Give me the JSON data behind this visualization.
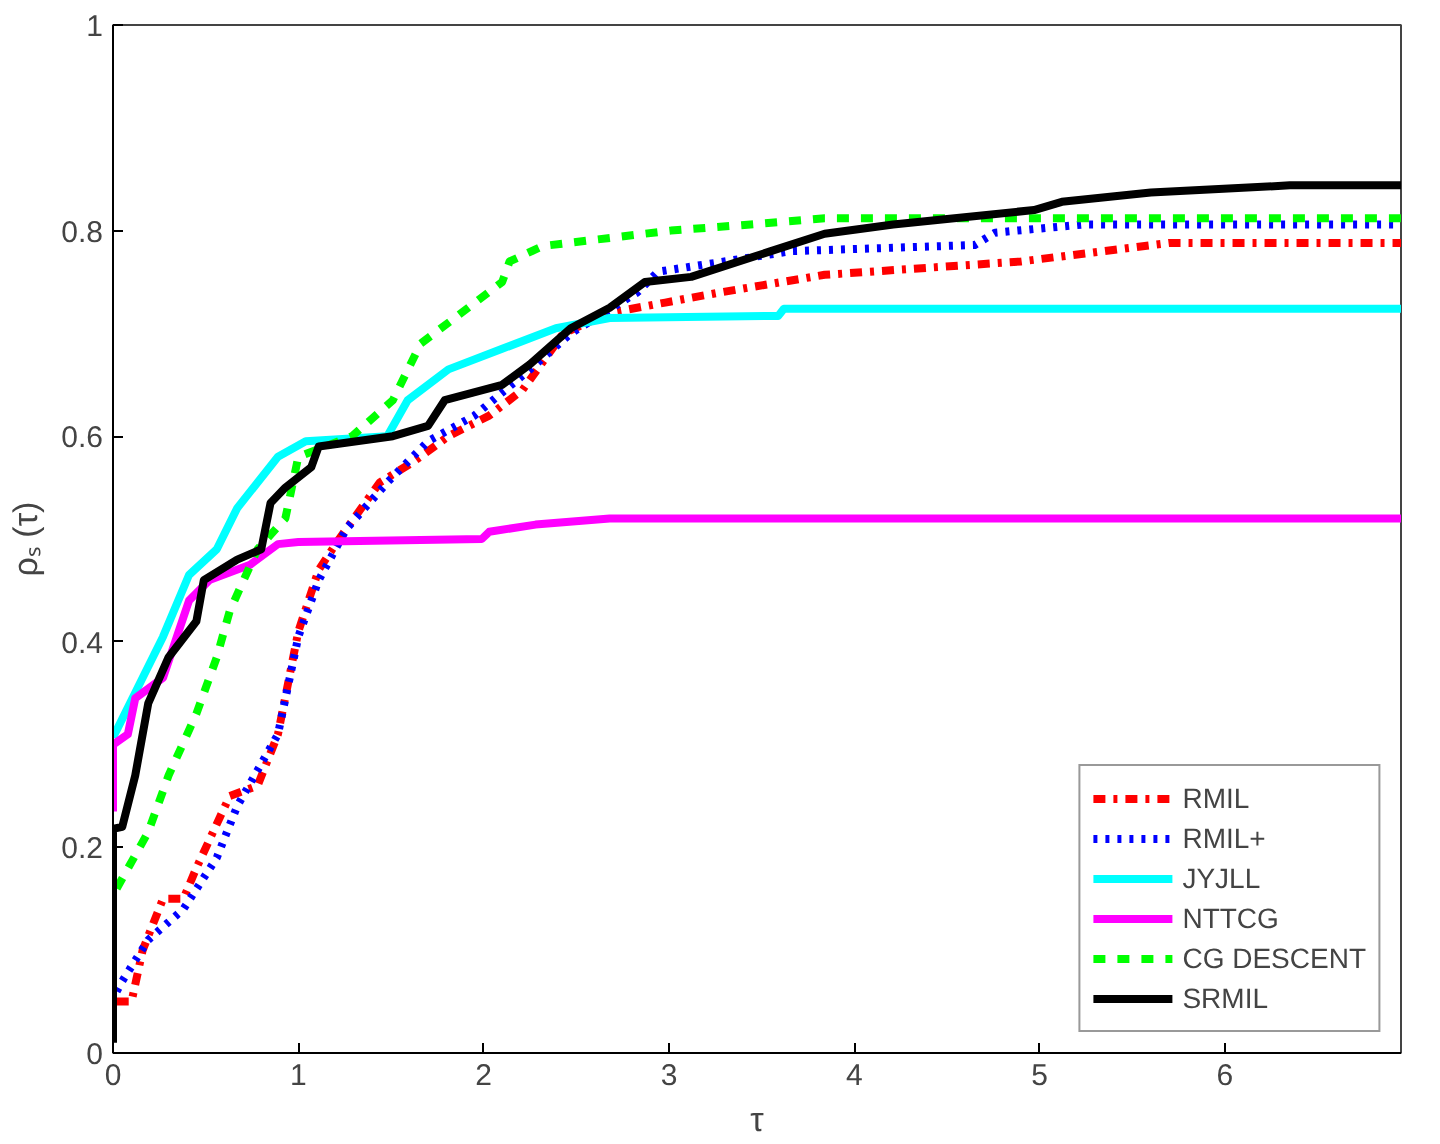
{
  "chart_data": {
    "type": "line",
    "xlabel": "τ",
    "ylabel": "ρₛ (τ)",
    "xlim": [
      0,
      6.95
    ],
    "xticks": [
      0,
      1,
      2,
      3,
      4,
      5,
      6
    ],
    "ylim": [
      0,
      1
    ],
    "yticks": [
      0,
      0.2,
      0.4,
      0.6,
      0.8,
      1
    ],
    "grid": false,
    "legend": "bottom right",
    "series": [
      {
        "name": "RMIL",
        "color": "#ff0000",
        "line_style": "dashdot",
        "x": [
          0.02,
          0.1,
          0.16,
          0.27,
          0.38,
          0.45,
          0.63,
          0.78,
          0.89,
          1.0,
          1.11,
          1.22,
          1.44,
          1.62,
          1.81,
          2.03,
          2.21,
          2.43,
          2.68,
          2.98,
          3.28,
          3.84,
          4.9,
          5.7,
          6.95
        ],
        "values": [
          0.05,
          0.05,
          0.1,
          0.15,
          0.15,
          0.18,
          0.25,
          0.26,
          0.31,
          0.41,
          0.47,
          0.5,
          0.555,
          0.575,
          0.6,
          0.62,
          0.645,
          0.7,
          0.72,
          0.73,
          0.74,
          0.757,
          0.77,
          0.788,
          0.788
        ]
      },
      {
        "name": "RMIL+",
        "color": "#0000ff",
        "line_style": "dotted",
        "x": [
          0.02,
          0.05,
          0.19,
          0.38,
          0.56,
          0.67,
          0.89,
          1.0,
          1.11,
          1.26,
          1.48,
          1.7,
          1.95,
          2.25,
          2.47,
          2.83,
          2.94,
          3.66,
          4.65,
          4.76,
          5.24,
          6.95
        ],
        "values": [
          0.06,
          0.07,
          0.11,
          0.14,
          0.19,
          0.24,
          0.31,
          0.405,
          0.46,
          0.51,
          0.555,
          0.595,
          0.62,
          0.665,
          0.7,
          0.74,
          0.76,
          0.78,
          0.786,
          0.798,
          0.806,
          0.806
        ]
      },
      {
        "name": "JYJLL",
        "color": "#00ffff",
        "line_style": "solid",
        "x": [
          0,
          0.05,
          0.16,
          0.27,
          0.41,
          0.56,
          0.67,
          0.78,
          0.89,
          1.04,
          1.48,
          1.59,
          1.81,
          2.1,
          2.39,
          2.68,
          3.59,
          3.62,
          6.95
        ],
        "values": [
          0.307,
          0.325,
          0.365,
          0.405,
          0.465,
          0.49,
          0.53,
          0.555,
          0.58,
          0.595,
          0.6,
          0.635,
          0.665,
          0.685,
          0.705,
          0.715,
          0.717,
          0.724,
          0.724
        ]
      },
      {
        "name": "NTTCG",
        "color": "#ff00ff",
        "line_style": "solid",
        "x": [
          0,
          0,
          0.08,
          0.12,
          0.27,
          0.41,
          0.52,
          0.74,
          0.89,
          1.0,
          1.99,
          2.03,
          2.28,
          2.68,
          6.95
        ],
        "values": [
          0.235,
          0.3,
          0.31,
          0.345,
          0.365,
          0.44,
          0.46,
          0.475,
          0.495,
          0.497,
          0.5,
          0.507,
          0.514,
          0.52,
          0.52
        ]
      },
      {
        "name": "CG DESCENT",
        "color": "#00ff00",
        "line_style": "dashed",
        "x": [
          0.02,
          0.19,
          0.3,
          0.45,
          0.56,
          0.63,
          0.78,
          0.93,
          1.0,
          1.29,
          1.51,
          1.66,
          1.88,
          2.1,
          2.14,
          2.32,
          3.01,
          3.44,
          3.84,
          6.95
        ],
        "values": [
          0.16,
          0.215,
          0.27,
          0.33,
          0.385,
          0.43,
          0.49,
          0.52,
          0.58,
          0.6,
          0.635,
          0.69,
          0.72,
          0.75,
          0.77,
          0.785,
          0.8,
          0.806,
          0.812,
          0.812
        ]
      },
      {
        "name": "SRMIL",
        "color": "#000000",
        "line_style": "solid",
        "x": [
          0,
          0,
          0.05,
          0.12,
          0.19,
          0.3,
          0.45,
          0.49,
          0.67,
          0.8,
          0.85,
          0.93,
          1.07,
          1.11,
          1.51,
          1.7,
          1.79,
          2.1,
          2.25,
          2.47,
          2.68,
          2.87,
          3.12,
          3.55,
          3.84,
          4.21,
          4.97,
          5.12,
          5.6,
          6.35,
          6.95
        ],
        "values": [
          0.01,
          0.218,
          0.22,
          0.27,
          0.34,
          0.385,
          0.42,
          0.46,
          0.48,
          0.49,
          0.535,
          0.55,
          0.57,
          0.59,
          0.6,
          0.61,
          0.635,
          0.65,
          0.67,
          0.705,
          0.725,
          0.75,
          0.755,
          0.78,
          0.797,
          0.806,
          0.82,
          0.828,
          0.837,
          0.844,
          0.844
        ]
      }
    ]
  }
}
